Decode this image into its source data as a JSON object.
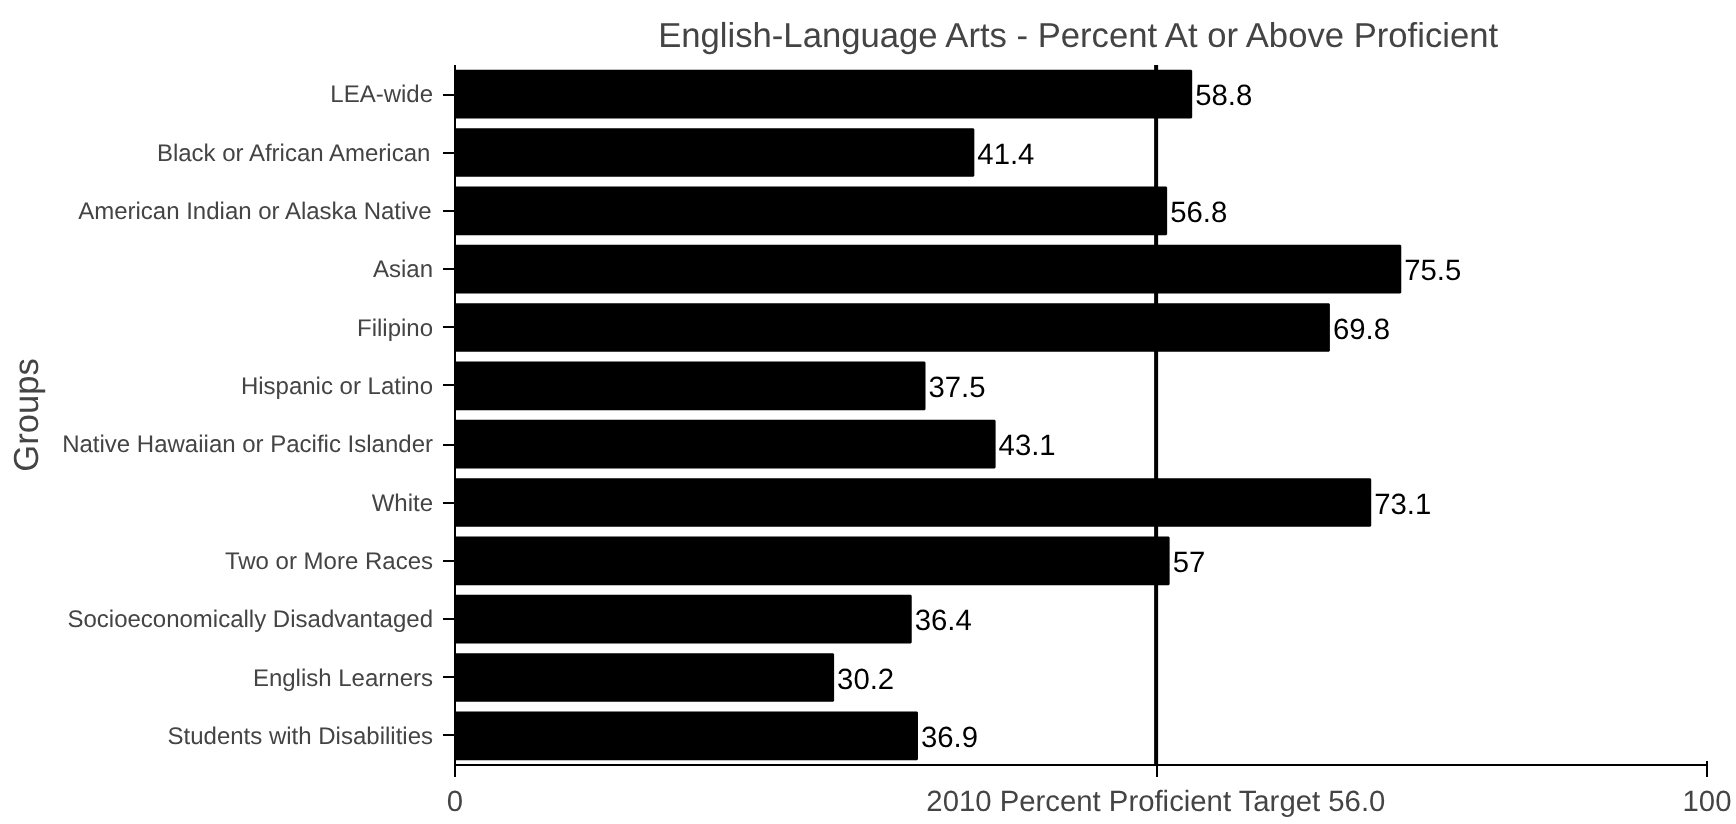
{
  "chart_data": {
    "type": "bar",
    "orientation": "horizontal",
    "title": "English-Language Arts - Percent At or Above Proficient",
    "ylabel": "Groups",
    "categories": [
      "LEA-wide",
      "Black or African American",
      "American Indian or Alaska Native",
      "Asian",
      "Filipino",
      "Hispanic or Latino",
      "Native Hawaiian or Pacific Islander",
      "White",
      "Two or More Races",
      "Socioeconomically Disadvantaged",
      "English Learners",
      "Students with Disabilities"
    ],
    "values": [
      58.8,
      41.4,
      56.8,
      75.5,
      69.8,
      37.5,
      43.1,
      73.1,
      57,
      36.4,
      30.2,
      36.9
    ],
    "color": "#000000",
    "data_labels": true,
    "xlim": [
      0,
      100
    ],
    "xticks": [
      0,
      100
    ],
    "grid": false,
    "ref_lines": [
      {
        "axis": "x",
        "value": 56,
        "label": "2010 Percent Proficient Target 56.0",
        "color": "#000000"
      }
    ]
  }
}
